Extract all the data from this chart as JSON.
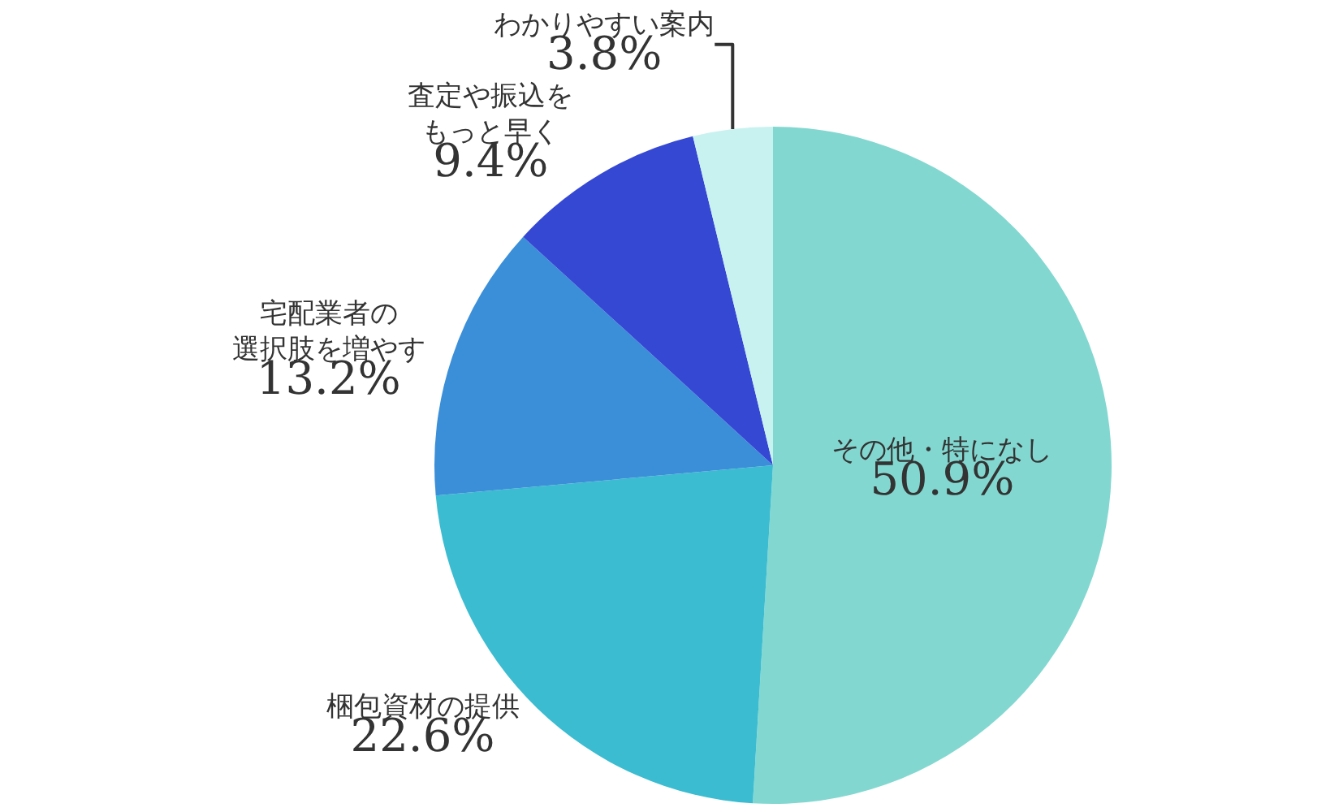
{
  "chart_data": {
    "type": "pie",
    "categories": [
      "その他・特になし",
      "梱包資材の提供",
      "宅配業者の選択肢を増やす",
      "査定や振込をもっと早く",
      "わかりやすい案内"
    ],
    "values": [
      50.9,
      22.6,
      13.2,
      9.4,
      3.8
    ],
    "colors": [
      "#82d8d0",
      "#3bbcd0",
      "#3a8fd8",
      "#3548d4",
      "#c8f2f0"
    ],
    "value_labels": [
      "50.9%",
      "22.6%",
      "13.2%",
      "9.4%",
      "3.8%"
    ]
  }
}
